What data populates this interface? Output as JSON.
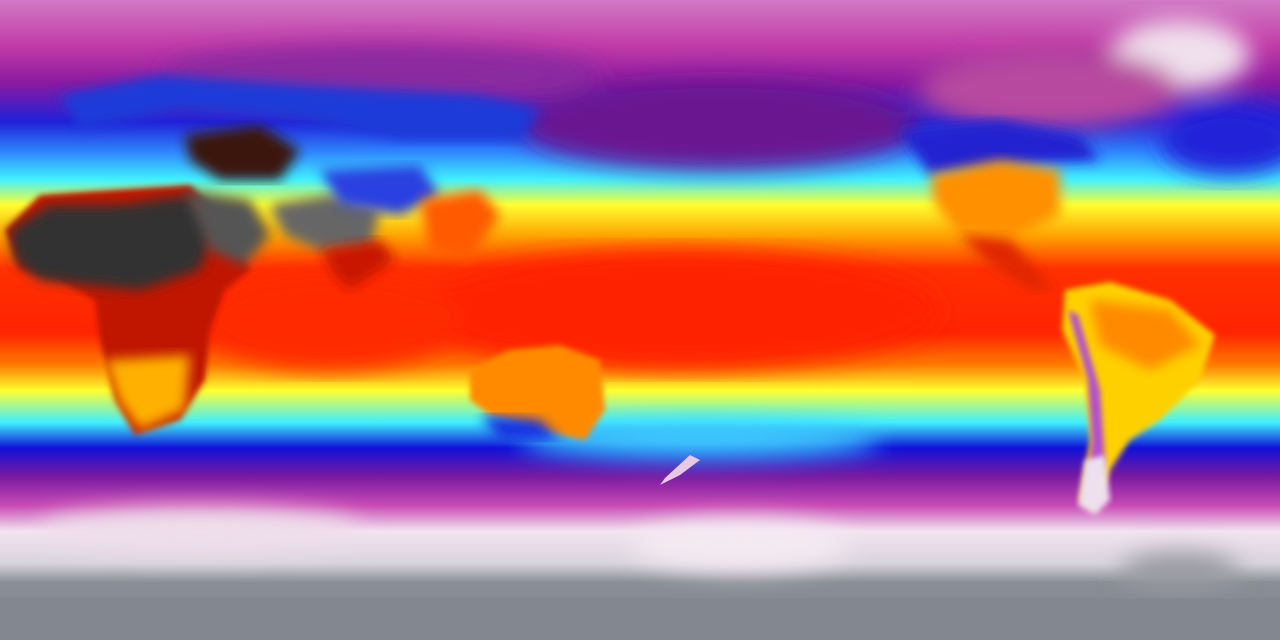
{
  "map": {
    "projection": "equirectangular",
    "variable_shown_by_color": "surface temperature",
    "colormap": [
      "#8a8f97",
      "#f2e6f0",
      "#c43fb0",
      "#7a1aa0",
      "#1010d8",
      "#2e8cff",
      "#40f0ff",
      "#ffff30",
      "#ffa000",
      "#ff2a00",
      "#b01000",
      "#3a2a2a",
      "#555555"
    ],
    "colors": {
      "polar_gray": "#8a8f97",
      "polar_white": "#f0e4ee",
      "magenta": "#c33fb2",
      "purple": "#6e1a9c",
      "blue": "#1515d8",
      "cyan": "#40eaff",
      "yellow": "#ffff2c",
      "orange": "#ff9a00",
      "red": "#ff2400",
      "desert_dark": "#2d2d2d"
    }
  }
}
